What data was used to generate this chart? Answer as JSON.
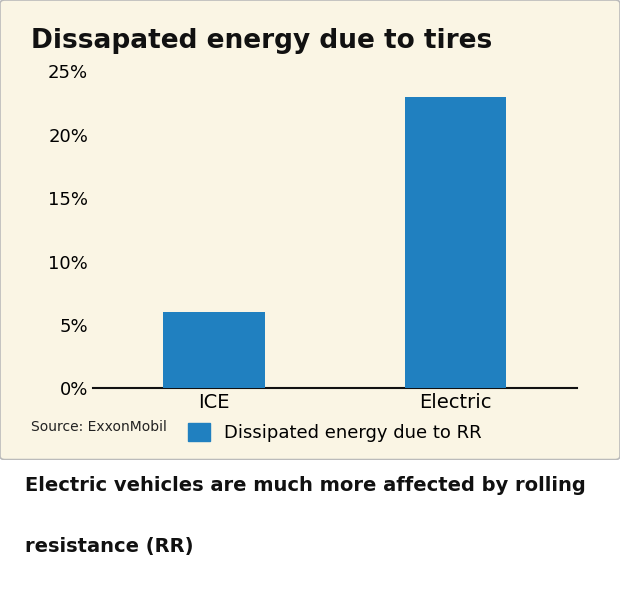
{
  "title": "Dissapated energy due to tires",
  "categories": [
    "ICE",
    "Electric"
  ],
  "values": [
    6,
    23
  ],
  "bar_color": "#2080C0",
  "ylim": [
    0,
    25
  ],
  "yticks": [
    0,
    5,
    10,
    15,
    20,
    25
  ],
  "ytick_labels": [
    "0%",
    "5%",
    "10%",
    "15%",
    "20%",
    "25%"
  ],
  "legend_label": "Dissipated energy due to RR",
  "source_text": "Source: ExxonMobil",
  "caption_line1": "Electric vehicles are much more affected by rolling",
  "caption_line2": "resistance (RR)",
  "background_color": "#FAF5E4",
  "title_fontsize": 19,
  "tick_fontsize": 13,
  "legend_fontsize": 13,
  "source_fontsize": 10,
  "caption_fontsize": 14,
  "bar_width": 0.42
}
